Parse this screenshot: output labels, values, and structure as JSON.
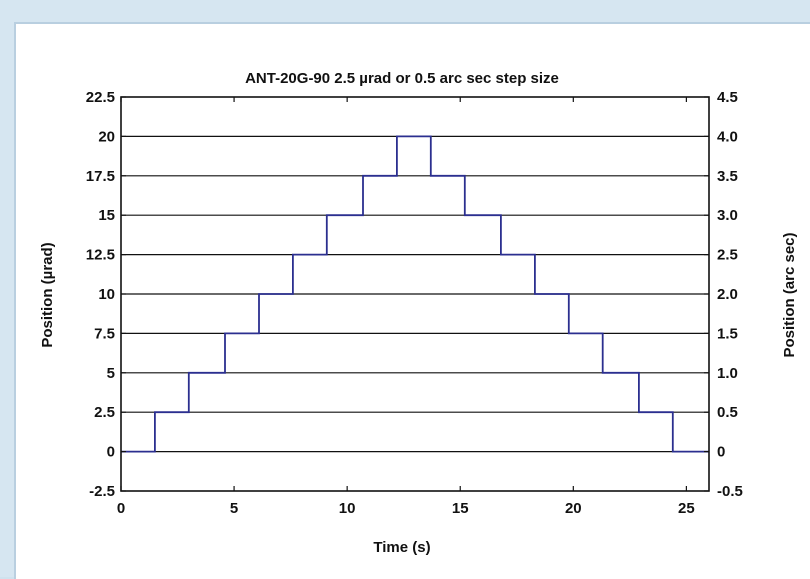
{
  "chart_data": {
    "type": "line",
    "title": "ANT-20G-90 2.5 µrad or 0.5 arc sec step size",
    "xlabel": "Time (s)",
    "ylabel": "Position (µrad)",
    "ylabel_right": "Position (arc sec)",
    "xlim": [
      0,
      26
    ],
    "ylim": [
      -2.5,
      22.5
    ],
    "ylim_right": [
      -0.5,
      4.5
    ],
    "x_ticks": [
      "0",
      "5",
      "10",
      "15",
      "20",
      "25"
    ],
    "y_ticks": [
      "-2.5",
      "0",
      "2.5",
      "5",
      "7.5",
      "10",
      "12.5",
      "15",
      "17.5",
      "20",
      "22.5"
    ],
    "y_right_ticks": [
      "-0.5",
      "0",
      "0.5",
      "1.0",
      "1.5",
      "2.0",
      "2.5",
      "3.0",
      "3.5",
      "4.0",
      "4.5"
    ],
    "grid": "horizontal",
    "series": [
      {
        "color": "#2b2f8f",
        "x": [
          0,
          1.5,
          1.5,
          3.0,
          3.0,
          4.6,
          4.6,
          6.1,
          6.1,
          7.6,
          7.6,
          9.1,
          9.1,
          10.7,
          10.7,
          12.2,
          12.2,
          13.7,
          13.7,
          15.2,
          15.2,
          16.8,
          16.8,
          18.3,
          18.3,
          19.8,
          19.8,
          21.3,
          21.3,
          22.9,
          22.9,
          24.4,
          24.4,
          26
        ],
        "y": [
          0,
          0,
          2.5,
          2.5,
          5,
          5,
          7.5,
          7.5,
          10,
          10,
          12.5,
          12.5,
          15,
          15,
          17.5,
          17.5,
          20,
          20,
          17.5,
          17.5,
          15,
          15,
          12.5,
          12.5,
          10,
          10,
          7.5,
          7.5,
          5,
          5,
          2.5,
          2.5,
          0,
          0
        ]
      }
    ]
  }
}
